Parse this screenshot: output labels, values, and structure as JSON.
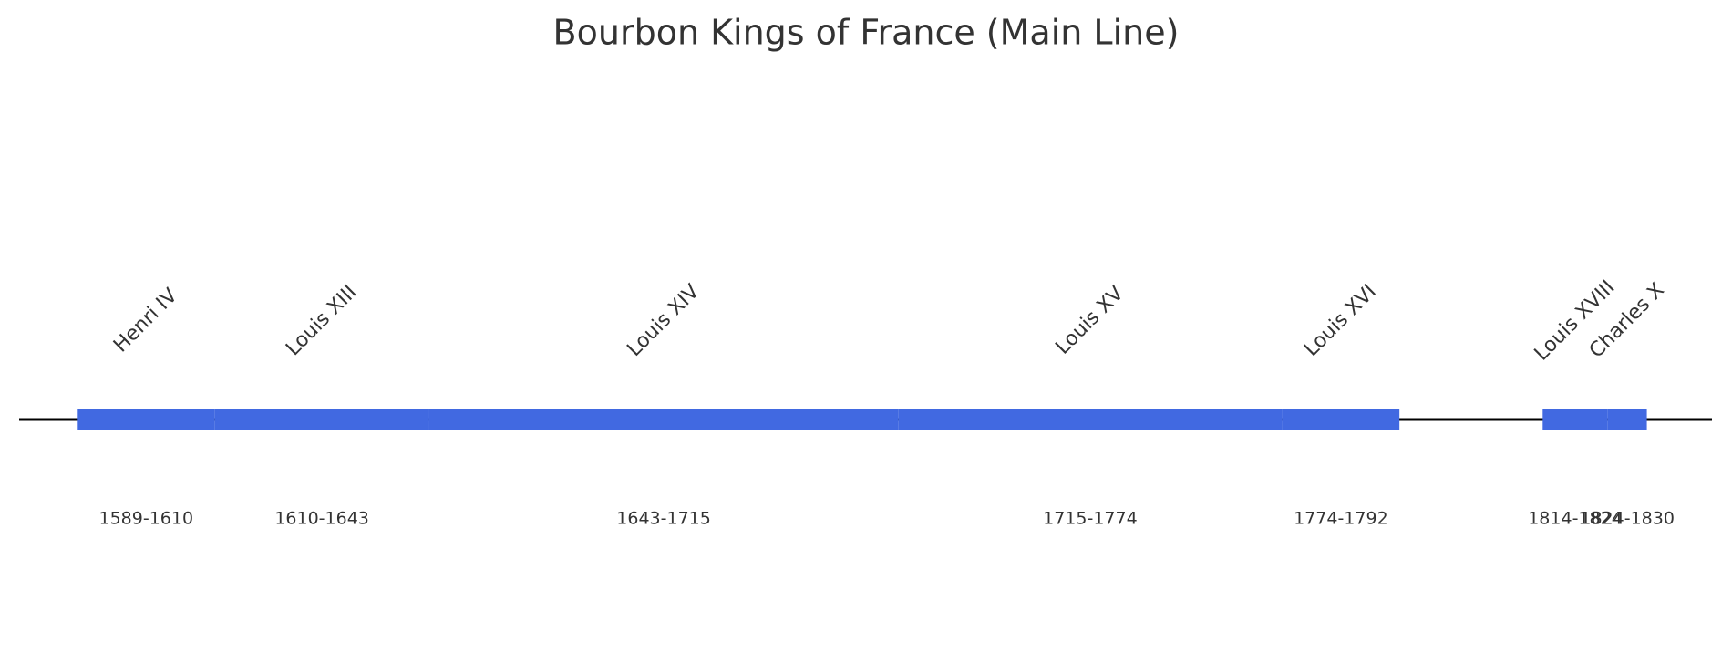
{
  "chart_data": {
    "type": "timeline",
    "title": "Bourbon Kings of France (Main Line)",
    "categories": [
      "Henri IV",
      "Louis XIII",
      "Louis XIV",
      "Louis XV",
      "Louis XVI",
      "Louis XVIII",
      "Charles X"
    ],
    "start": [
      1589,
      1610,
      1643,
      1715,
      1774,
      1814,
      1824
    ],
    "end": [
      1610,
      1643,
      1715,
      1774,
      1792,
      1824,
      1830
    ],
    "value_labels": [
      "1589-1610",
      "1610-1643",
      "1643-1715",
      "1715-1774",
      "1774-1792",
      "1814-1824",
      "1824-1830"
    ],
    "color": "#4169e1",
    "xlim": [
      1580,
      1840
    ]
  }
}
